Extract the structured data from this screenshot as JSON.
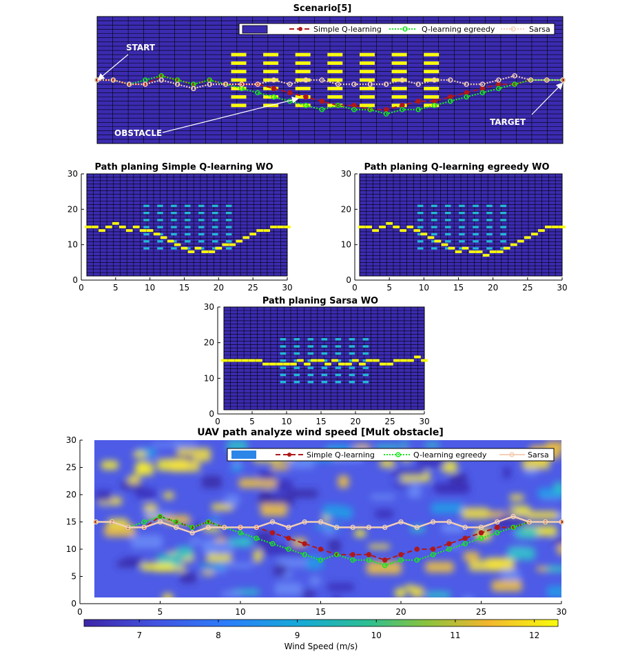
{
  "colors": {
    "grid_bg": "#3b2bb0",
    "grid_line": "#000000",
    "obstacle_yellow": "#f9fb0e",
    "obstacle_cyan": "#23b7d6",
    "path_yellow": "#f9fb0e",
    "q_simple": "#b01818",
    "q_egreedy": "#17e81d",
    "sarsa": "#f3cfb4"
  },
  "scenario": {
    "title": "Scenario[5]",
    "legend": [
      "",
      "Simple Q-learning",
      "Q-learning egreedy",
      "Sarsa"
    ],
    "annotations": {
      "start": "START",
      "target": "TARGET",
      "obstacle": "OBSTACLE"
    }
  },
  "panels": {
    "simple": {
      "title": "Path planing Simple Q-learning WO"
    },
    "egreedy": {
      "title": "Path planing Q-learning egreedy WO"
    },
    "sarsa": {
      "title": "Path planing Sarsa WO"
    }
  },
  "wind": {
    "title": "UAV path analyze wind speed [Mult obstacle]",
    "legend": [
      "",
      "Simple Q-learning",
      "Q-learning egreedy",
      "Sarsa"
    ],
    "colorbar_label": "Wind Speed (m/s)"
  },
  "chart_data": [
    {
      "type": "line",
      "title": "Scenario[5]",
      "grid": true,
      "legend_position": "top-right",
      "obstacles": {
        "columns": [
          9,
          11,
          13,
          15,
          17,
          19,
          21
        ],
        "rows_yellow": [
          9,
          11,
          13,
          15,
          17,
          19,
          21
        ]
      },
      "series": [
        {
          "name": "Simple Q-learning",
          "x": [
            1,
            2,
            3,
            4,
            5,
            6,
            7,
            8,
            9,
            10,
            11,
            12,
            13,
            14,
            15,
            16,
            17,
            18,
            19,
            20,
            21,
            22,
            23,
            24,
            25,
            26,
            27,
            28,
            29,
            30
          ],
          "y": [
            15,
            15,
            14,
            14,
            16,
            15,
            14,
            15,
            14,
            14,
            14,
            13,
            12,
            11,
            10,
            9,
            9,
            8,
            8,
            9,
            10,
            10,
            11,
            12,
            13,
            14,
            14,
            15,
            15,
            15
          ]
        },
        {
          "name": "Q-learning egreedy",
          "x": [
            1,
            2,
            3,
            4,
            5,
            6,
            7,
            8,
            9,
            10,
            11,
            12,
            13,
            14,
            15,
            16,
            17,
            18,
            19,
            20,
            21,
            22,
            23,
            24,
            25,
            26,
            27,
            28,
            29,
            30
          ],
          "y": [
            15,
            15,
            14,
            15,
            16,
            15,
            14,
            15,
            14,
            13,
            12,
            11,
            10,
            9,
            8,
            9,
            8,
            8,
            7,
            8,
            8,
            9,
            10,
            11,
            12,
            13,
            14,
            15,
            15,
            15
          ]
        },
        {
          "name": "Sarsa",
          "x": [
            1,
            2,
            3,
            4,
            5,
            6,
            7,
            8,
            9,
            10,
            11,
            12,
            13,
            14,
            15,
            16,
            17,
            18,
            19,
            20,
            21,
            22,
            23,
            24,
            25,
            26,
            27,
            28,
            29,
            30
          ],
          "y": [
            15,
            15,
            14,
            14,
            15,
            14,
            13,
            14,
            14,
            14,
            14,
            15,
            14,
            15,
            15,
            14,
            14,
            14,
            14,
            15,
            14,
            15,
            15,
            14,
            14,
            15,
            16,
            15,
            15,
            15
          ]
        }
      ]
    },
    {
      "type": "heatmap",
      "title": "Path planing Simple Q-learning WO",
      "xlim": [
        0,
        30
      ],
      "ylim": [
        0,
        30
      ],
      "x_ticks": [
        0,
        5,
        10,
        15,
        20,
        25,
        30
      ],
      "y_ticks": [
        0,
        10,
        20,
        30
      ],
      "path_y": [
        15,
        15,
        14,
        15,
        16,
        15,
        14,
        15,
        14,
        14,
        13,
        12,
        11,
        10,
        9,
        8,
        9,
        8,
        8,
        9,
        10,
        10,
        11,
        12,
        13,
        14,
        14,
        15,
        15,
        15
      ]
    },
    {
      "type": "heatmap",
      "title": "Path planing Q-learning egreedy WO",
      "xlim": [
        0,
        30
      ],
      "ylim": [
        0,
        30
      ],
      "x_ticks": [
        0,
        5,
        10,
        15,
        20,
        25,
        30
      ],
      "y_ticks": [
        0,
        10,
        20,
        30
      ],
      "path_y": [
        15,
        15,
        14,
        15,
        16,
        15,
        14,
        15,
        14,
        13,
        12,
        11,
        10,
        9,
        8,
        9,
        8,
        8,
        7,
        8,
        8,
        9,
        10,
        11,
        12,
        13,
        14,
        15,
        15,
        15
      ]
    },
    {
      "type": "heatmap",
      "title": "Path planing Sarsa WO",
      "xlim": [
        0,
        30
      ],
      "ylim": [
        0,
        30
      ],
      "x_ticks": [
        0,
        5,
        10,
        15,
        20,
        25,
        30
      ],
      "y_ticks": [
        0,
        10,
        20,
        30
      ],
      "path_y": [
        15,
        15,
        15,
        15,
        15,
        15,
        14,
        14,
        14,
        14,
        14,
        15,
        14,
        15,
        15,
        14,
        15,
        14,
        14,
        15,
        14,
        15,
        15,
        14,
        14,
        15,
        15,
        15,
        16,
        15
      ]
    },
    {
      "type": "line",
      "title": "UAV path analyze wind speed [Mult obstacle]",
      "xlim": [
        0,
        30
      ],
      "ylim": [
        0,
        30
      ],
      "x_ticks": [
        0,
        5,
        10,
        15,
        20,
        25,
        30
      ],
      "y_ticks": [
        0,
        5,
        10,
        15,
        20,
        25,
        30
      ],
      "colorbar": {
        "label": "Wind Speed (m/s)",
        "range": [
          6.3,
          12.3
        ],
        "ticks": [
          7,
          8,
          9,
          10,
          11,
          12
        ]
      },
      "series": [
        {
          "name": "Simple Q-learning",
          "x": [
            1,
            2,
            3,
            4,
            5,
            6,
            7,
            8,
            9,
            10,
            11,
            12,
            13,
            14,
            15,
            16,
            17,
            18,
            19,
            20,
            21,
            22,
            23,
            24,
            25,
            26,
            27,
            28,
            29,
            30
          ],
          "y": [
            15,
            15,
            14,
            14,
            16,
            15,
            14,
            15,
            14,
            14,
            14,
            13,
            12,
            11,
            10,
            9,
            9,
            9,
            8,
            9,
            10,
            10,
            11,
            12,
            13,
            14,
            14,
            15,
            15,
            15
          ]
        },
        {
          "name": "Q-learning egreedy",
          "x": [
            1,
            2,
            3,
            4,
            5,
            6,
            7,
            8,
            9,
            10,
            11,
            12,
            13,
            14,
            15,
            16,
            17,
            18,
            19,
            20,
            21,
            22,
            23,
            24,
            25,
            26,
            27,
            28,
            29,
            30
          ],
          "y": [
            15,
            15,
            14,
            15,
            16,
            15,
            14,
            15,
            14,
            13,
            12,
            11,
            10,
            9,
            8,
            9,
            8,
            8,
            7,
            8,
            8,
            9,
            10,
            11,
            12,
            13,
            14,
            15,
            15,
            15
          ]
        },
        {
          "name": "Sarsa",
          "x": [
            1,
            2,
            3,
            4,
            5,
            6,
            7,
            8,
            9,
            10,
            11,
            12,
            13,
            14,
            15,
            16,
            17,
            18,
            19,
            20,
            21,
            22,
            23,
            24,
            25,
            26,
            27,
            28,
            29,
            30
          ],
          "y": [
            15,
            15,
            14,
            14,
            15,
            14,
            13,
            14,
            14,
            14,
            14,
            15,
            14,
            15,
            15,
            14,
            14,
            14,
            14,
            15,
            14,
            15,
            15,
            14,
            14,
            15,
            16,
            15,
            15,
            15
          ]
        }
      ]
    }
  ]
}
